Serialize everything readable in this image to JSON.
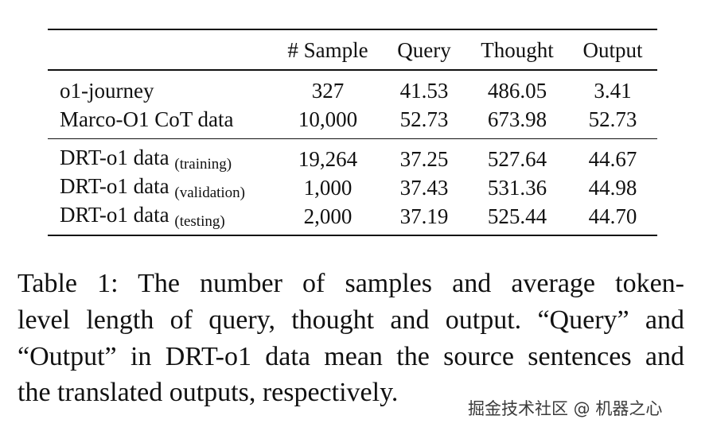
{
  "table": {
    "header": [
      "# Sample",
      "Query",
      "Thought",
      "Output"
    ],
    "groups": [
      [
        {
          "name": "o1-journey",
          "values": [
            "327",
            "41.53",
            "486.05",
            "3.41"
          ]
        },
        {
          "name": "Marco-O1 CoT data",
          "values": [
            "10,000",
            "52.73",
            "673.98",
            "52.73"
          ]
        }
      ],
      [
        {
          "name": "DRT-o1 data",
          "subscript": "(training)",
          "values": [
            "19,264",
            "37.25",
            "527.64",
            "44.67"
          ]
        },
        {
          "name": "DRT-o1 data",
          "subscript": "(validation)",
          "values": [
            "1,000",
            "37.43",
            "531.36",
            "44.98"
          ]
        },
        {
          "name": "DRT-o1 data",
          "subscript": "(testing)",
          "values": [
            "2,000",
            "37.19",
            "525.44",
            "44.70"
          ]
        }
      ]
    ]
  },
  "caption": [
    "Table 1: The number of samples and average token-",
    "level length of query, thought and output. “Query” and",
    "“Output” in DRT-o1 data mean the source sentences and",
    "the translated outputs, respectively."
  ],
  "watermark": "掘金技术社区 @ 机器之心"
}
